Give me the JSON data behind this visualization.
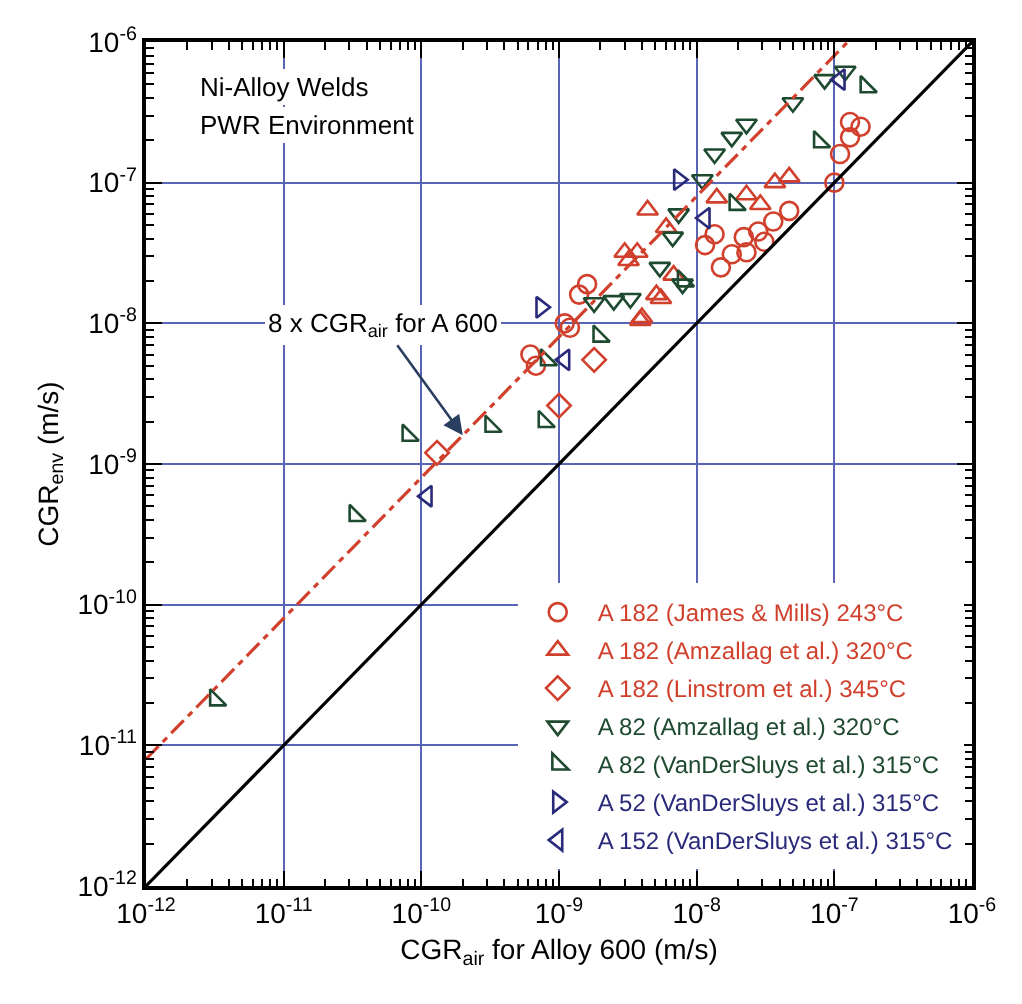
{
  "chart_data": {
    "type": "scatter",
    "xlabel": "CGR$_{air}$ for Alloy 600 (m/s)",
    "ylabel": "CGR$_{env}$ (m/s)",
    "log": "xy",
    "grid": true,
    "legend": "bottom right",
    "xlim": [
      1e-12,
      1e-06
    ],
    "ylim": [
      1e-12,
      1e-06
    ],
    "xticks": [
      {
        "value": 1e-12,
        "label": "10$^{-12}$"
      },
      {
        "value": 1e-11,
        "label": "10$^{-11}$"
      },
      {
        "value": 1e-10,
        "label": "10$^{-10}$"
      },
      {
        "value": 1e-09,
        "label": "10$^{-9}$"
      },
      {
        "value": 1e-08,
        "label": "10$^{-8}$"
      },
      {
        "value": 1e-07,
        "label": "10$^{-7}$"
      },
      {
        "value": 1e-06,
        "label": "10$^{-6}$"
      }
    ],
    "yticks": [
      {
        "value": 1e-12,
        "label": "10$^{-12}$"
      },
      {
        "value": 1e-11,
        "label": "10$^{-11}$"
      },
      {
        "value": 1e-10,
        "label": "10$^{-10}$"
      },
      {
        "value": 1e-09,
        "label": "10$^{-9}$"
      },
      {
        "value": 1e-08,
        "label": "10$^{-8}$"
      },
      {
        "value": 1e-07,
        "label": "10$^{-7}$"
      },
      {
        "value": 1e-06,
        "label": "10$^{-6}$"
      }
    ],
    "annotations": [
      "Ni-Alloy Welds",
      "PWR Environment",
      {
        "text": "8 x CGR$_{air}$ for A 600",
        "x": 2e-10,
        "y": 1.6e-09
      }
    ],
    "series": [
      {
        "name": "A 182 (James & Mills) 243°C",
        "color": "#d0402c",
        "marker": "circle",
        "x": [
          1e-07,
          1.1e-07,
          1.3e-07,
          1.55e-07,
          1.3e-07,
          4.7e-08,
          3.6e-08,
          2.8e-08,
          2.2e-08,
          3.1e-08,
          1.8e-08,
          1.5e-08,
          2.3e-08,
          1.15e-08,
          1.35e-08,
          1.4e-09,
          1.6e-09,
          1.2e-09,
          1.1e-09,
          6.2e-10,
          6.8e-10
        ],
        "values": [
          1e-07,
          1.6e-07,
          2.1e-07,
          2.5e-07,
          2.7e-07,
          6.3e-08,
          5.3e-08,
          4.5e-08,
          4.1e-08,
          3.8e-08,
          3.1e-08,
          2.5e-08,
          3.2e-08,
          3.6e-08,
          4.3e-08,
          1.6e-08,
          1.9e-08,
          9.3e-09,
          1e-08,
          6e-09,
          5e-09
        ]
      },
      {
        "name": "A 182 (Amzallag et al.) 320°C",
        "color": "#d0402c",
        "marker": "triangle",
        "x": [
          4.4e-09,
          4.7e-08,
          3.7e-08,
          1.4e-08,
          2.3e-08,
          2.9e-08,
          6e-09,
          3e-09,
          3.7e-09,
          3.2e-09,
          3.9e-09,
          5.1e-09,
          6.8e-09,
          4e-09,
          5.5e-09
        ],
        "values": [
          6.4e-08,
          1.1e-07,
          1e-07,
          7.8e-08,
          8.2e-08,
          7e-08,
          4.8e-08,
          3.2e-08,
          3.2e-08,
          2.8e-08,
          1.05e-08,
          1.6e-08,
          2.2e-08,
          1.1e-08,
          1.5e-08
        ]
      },
      {
        "name": "A 182 (Linstrom et al.) 345°C",
        "color": "#d0402c",
        "marker": "diamond",
        "x": [
          1.8e-09,
          1e-09,
          1.3e-10
        ],
        "values": [
          5.5e-09,
          2.6e-09,
          1.2e-09
        ]
      },
      {
        "name": "A 82 (Amzallag et al.) 320°C",
        "color": "#1e4a30",
        "marker": "triangle-down",
        "x": [
          1.2e-07,
          8.5e-08,
          5e-08,
          2.3e-08,
          1.8e-08,
          1.35e-08,
          1.1e-08,
          7.4e-09,
          6.7e-09,
          5.4e-09,
          3.3e-09,
          2.5e-09,
          1.8e-09,
          7.9e-09
        ],
        "values": [
          6.2e-07,
          5.4e-07,
          3.7e-07,
          2.6e-07,
          2.1e-07,
          1.6e-07,
          1.05e-07,
          6e-08,
          4.1e-08,
          2.5e-08,
          1.5e-08,
          1.45e-08,
          1.4e-08,
          1.9e-08
        ]
      },
      {
        "name": "A 82 (VanDerSluys et al.) 315°C",
        "color": "#1e4a30",
        "marker": "triangle-sw",
        "x": [
          1.7e-07,
          7.8e-08,
          1.9e-08,
          8e-09,
          1.95e-09,
          8.1e-10,
          7.8e-10,
          3.2e-10,
          8e-11,
          3.3e-11,
          3.2e-12
        ],
        "values": [
          4.8e-07,
          1.95e-07,
          7e-08,
          2e-08,
          8.1e-09,
          5.5e-09,
          2e-09,
          1.85e-09,
          1.6e-09,
          4.3e-10,
          2.1e-11
        ]
      },
      {
        "name": "A 52 (VanDerSluys et al.) 315°C",
        "color": "#2a2a7a",
        "marker": "triangle-right",
        "x": [
          7.4e-09,
          7.4e-10
        ],
        "values": [
          1.05e-07,
          1.3e-08
        ]
      },
      {
        "name": "A 152 (VanDerSluys et al.) 315°C",
        "color": "#2a2a7a",
        "marker": "triangle-left",
        "x": [
          1.1e-07,
          1.15e-08,
          1.1e-09,
          1.1e-10
        ],
        "values": [
          5.4e-07,
          5.6e-08,
          5.5e-09,
          5.9e-10
        ]
      },
      {
        "type": "line",
        "color": "#d0402c",
        "line_style": "dashdot",
        "x": [
          1e-12,
          1.25e-07
        ],
        "values": [
          8e-12,
          1e-06
        ]
      },
      {
        "type": "line",
        "color": "#000000",
        "line_style": "solid",
        "x": [
          1e-12,
          1e-06
        ],
        "values": [
          1e-12,
          1e-06
        ]
      }
    ]
  }
}
